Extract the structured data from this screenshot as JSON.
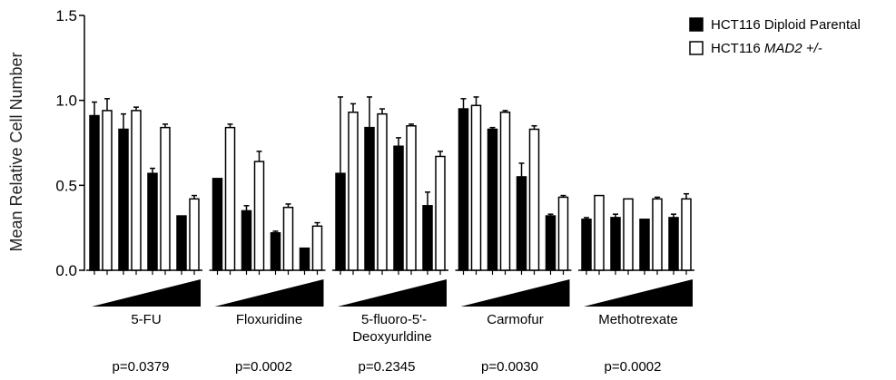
{
  "chart_data": {
    "type": "bar",
    "ylabel": "Mean Relative Cell Number",
    "ylim": [
      0,
      1.5
    ],
    "yticks": [
      "0.0",
      "0.5",
      "1.0",
      "1.5"
    ],
    "grid": false,
    "legend_position": "top-right",
    "series": [
      {
        "name": "HCT116 Diploid Parental",
        "name_italic": "",
        "name_suffix": "",
        "fill": "#000000"
      },
      {
        "name": "HCT116 ",
        "name_italic": "MAD2",
        "name_suffix": " +/-",
        "fill": "#ffffff"
      }
    ],
    "groups": [
      {
        "label_lines": [
          "5-FU"
        ],
        "p_value": "p=0.0379",
        "parental": [
          0.91,
          0.83,
          0.57,
          0.32
        ],
        "parental_err": [
          0.08,
          0.09,
          0.03,
          0.0
        ],
        "mad2": [
          0.94,
          0.94,
          0.84,
          0.42
        ],
        "mad2_err": [
          0.07,
          0.02,
          0.02,
          0.02
        ]
      },
      {
        "label_lines": [
          "Floxuridine"
        ],
        "p_value": "p=0.0002",
        "parental": [
          0.54,
          0.35,
          0.22,
          0.13
        ],
        "parental_err": [
          0.0,
          0.03,
          0.01,
          0.0
        ],
        "mad2": [
          0.84,
          0.64,
          0.37,
          0.26
        ],
        "mad2_err": [
          0.02,
          0.06,
          0.02,
          0.02
        ]
      },
      {
        "label_lines": [
          "5-fluoro-5'-",
          "Deoxyurldine"
        ],
        "p_value": "p=0.2345",
        "parental": [
          0.57,
          0.84,
          0.73,
          0.38
        ],
        "parental_err": [
          0.45,
          0.18,
          0.05,
          0.08
        ],
        "mad2": [
          0.93,
          0.92,
          0.85,
          0.67
        ],
        "mad2_err": [
          0.05,
          0.03,
          0.01,
          0.03
        ]
      },
      {
        "label_lines": [
          "Carmofur"
        ],
        "p_value": "p=0.0030",
        "parental": [
          0.95,
          0.83,
          0.55,
          0.32
        ],
        "parental_err": [
          0.06,
          0.01,
          0.08,
          0.01
        ],
        "mad2": [
          0.97,
          0.93,
          0.83,
          0.43
        ],
        "mad2_err": [
          0.05,
          0.01,
          0.02,
          0.01
        ]
      },
      {
        "label_lines": [
          "Methotrexate"
        ],
        "p_value": "p=0.0002",
        "parental": [
          0.3,
          0.31,
          0.3,
          0.31
        ],
        "parental_err": [
          0.01,
          0.02,
          0.0,
          0.02
        ],
        "mad2": [
          0.44,
          0.42,
          0.42,
          0.42
        ],
        "mad2_err": [
          0.0,
          0.0,
          0.01,
          0.03
        ]
      }
    ]
  }
}
